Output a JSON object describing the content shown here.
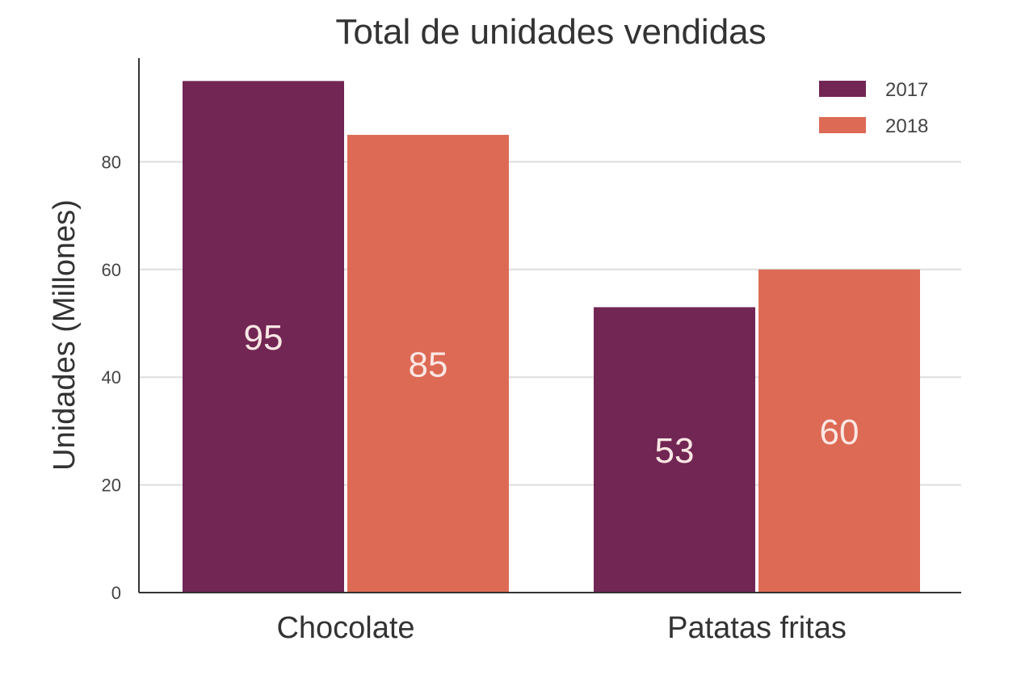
{
  "chart_data": {
    "type": "bar",
    "title": "Total de unidades vendidas",
    "xlabel": "",
    "ylabel": "Unidades (Millones)",
    "categories": [
      "Chocolate",
      "Patatas fritas"
    ],
    "series": [
      {
        "name": "2017",
        "color": "#722654",
        "values": [
          95,
          53
        ]
      },
      {
        "name": "2018",
        "color": "#dd6a55",
        "values": [
          85,
          60
        ]
      }
    ],
    "ylim": [
      0,
      100
    ],
    "yticks": [
      0,
      20,
      40,
      60,
      80
    ],
    "grid": true,
    "legend_position": "top-right",
    "bar_labels_shown": true
  }
}
